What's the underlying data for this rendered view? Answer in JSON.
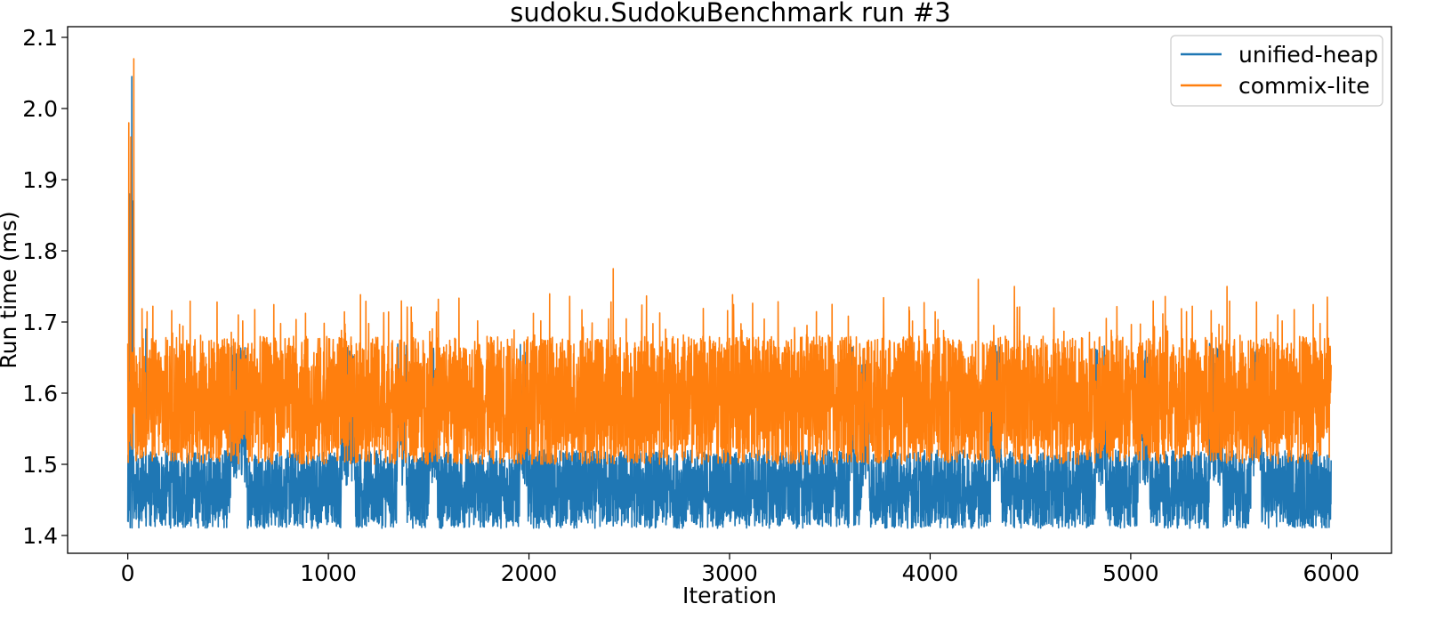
{
  "chart_data": {
    "type": "line",
    "title": "sudoku.SudokuBenchmark run #3",
    "xlabel": "Iteration",
    "ylabel": "Run time (ms)",
    "xlim": [
      -300,
      6300
    ],
    "ylim": [
      1.375,
      2.115
    ],
    "xticks": [
      0,
      1000,
      2000,
      3000,
      4000,
      5000,
      6000
    ],
    "yticks": [
      1.4,
      1.5,
      1.6,
      1.7,
      1.8,
      1.9,
      2.0,
      2.1
    ],
    "xtick_labels": [
      "0",
      "1000",
      "2000",
      "3000",
      "4000",
      "5000",
      "6000"
    ],
    "ytick_labels": [
      "1.4",
      "1.5",
      "1.6",
      "1.7",
      "1.8",
      "1.9",
      "2.0",
      "2.1"
    ],
    "grid": false,
    "legend_position": "top-right",
    "n_points": 6000,
    "series": [
      {
        "name": "unified-heap",
        "color": "#1f77b4",
        "shape": "noisy oscillation between about 1.41 and 1.52 ms with intermittent segments between about 1.47 and 1.67 ms",
        "low_band": [
          1.41,
          1.52
        ],
        "high_band": [
          1.47,
          1.67
        ],
        "peaks": [
          {
            "x": 10,
            "y": 1.88
          },
          {
            "x": 20,
            "y": 2.045
          },
          {
            "x": 25,
            "y": 1.87
          },
          {
            "x": 90,
            "y": 1.69
          }
        ]
      },
      {
        "name": "commix-lite",
        "color": "#ff7f0e",
        "shape": "noisy oscillation between about 1.50 and 1.68 ms with frequent spikes up to 1.75 ms",
        "band": [
          1.5,
          1.68
        ],
        "peaks": [
          {
            "x": 5,
            "y": 1.98
          },
          {
            "x": 15,
            "y": 1.96
          },
          {
            "x": 30,
            "y": 2.07
          },
          {
            "x": 2420,
            "y": 1.775
          },
          {
            "x": 4240,
            "y": 1.76
          },
          {
            "x": 4420,
            "y": 1.75
          },
          {
            "x": 5480,
            "y": 1.75
          },
          {
            "x": 5980,
            "y": 1.735
          }
        ]
      }
    ]
  }
}
